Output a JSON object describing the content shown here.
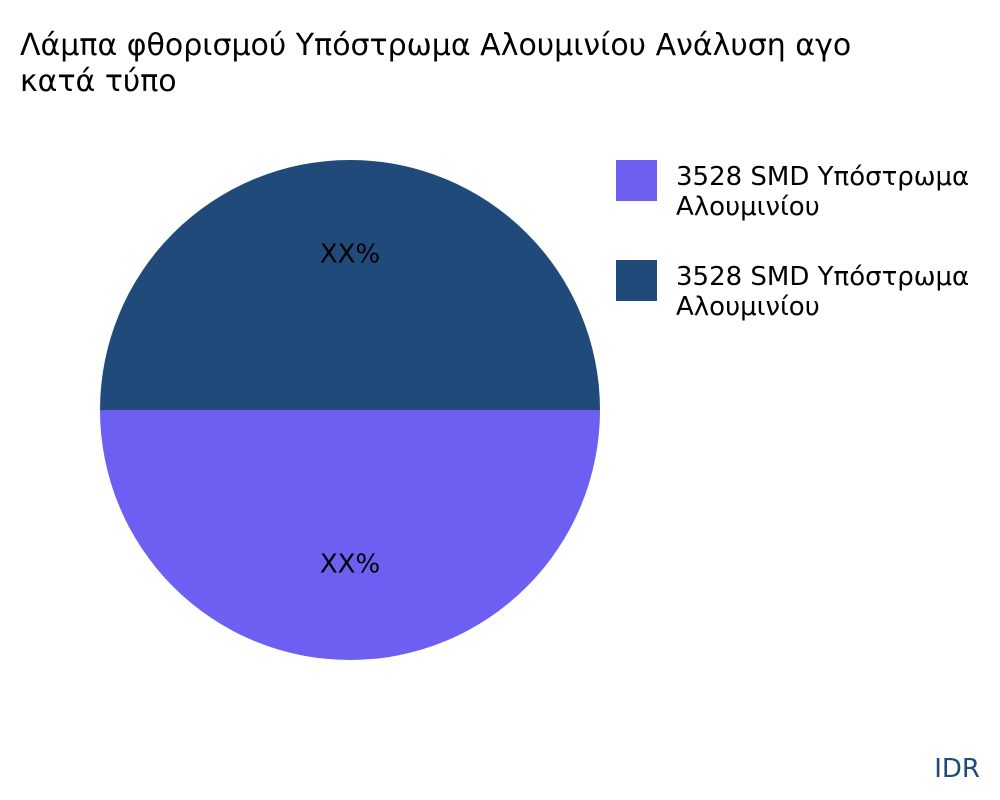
{
  "chart_data": {
    "type": "pie",
    "title": [
      "Λάμπα φθορισμού Υπόστρωμα Αλουμινίου Ανάλυση αγο",
      "κατά τύπο"
    ],
    "categories": [
      "3528 SMD Υπόστρωμα Αλουμινίου",
      "3528 SMD Υπόστρωμα Αλουμινίου"
    ],
    "values": [
      50,
      50
    ],
    "value_labels": [
      "XX%",
      "XX%"
    ],
    "colors": [
      "#6c5ff2",
      "#1f4a7a"
    ],
    "legend": "top-right",
    "source": "IDR"
  }
}
